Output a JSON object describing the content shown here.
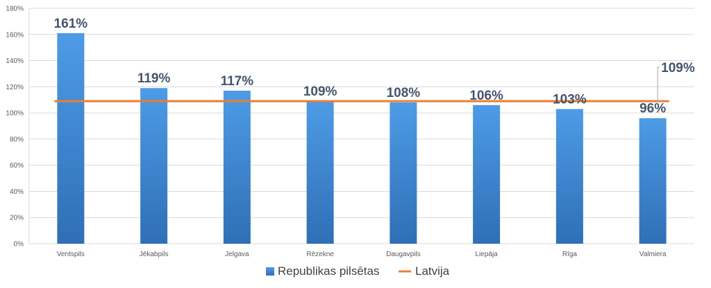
{
  "chart_data": {
    "type": "bar",
    "categories": [
      "Ventspils",
      "Jēkabpils",
      "Jelgava",
      "Rēzekne",
      "Daugavpils",
      "Liepāja",
      "Rīga",
      "Valmiera"
    ],
    "series": [
      {
        "name": "Republikas pilsētas",
        "type": "bar",
        "values": [
          161,
          119,
          117,
          109,
          108,
          106,
          103,
          96
        ],
        "labels": [
          "161%",
          "119%",
          "117%",
          "109%",
          "108%",
          "106%",
          "103%",
          "96%"
        ],
        "color": "#4A90D9"
      },
      {
        "name": "Latvija",
        "type": "line",
        "value": 109,
        "label": "109%",
        "color": "#ED7D31"
      }
    ],
    "y_ticks": [
      "0%",
      "20%",
      "40%",
      "60%",
      "80%",
      "100%",
      "120%",
      "140%",
      "160%",
      "180%"
    ],
    "ylim": [
      0,
      180
    ],
    "grid": true,
    "legend_position": "bottom"
  }
}
